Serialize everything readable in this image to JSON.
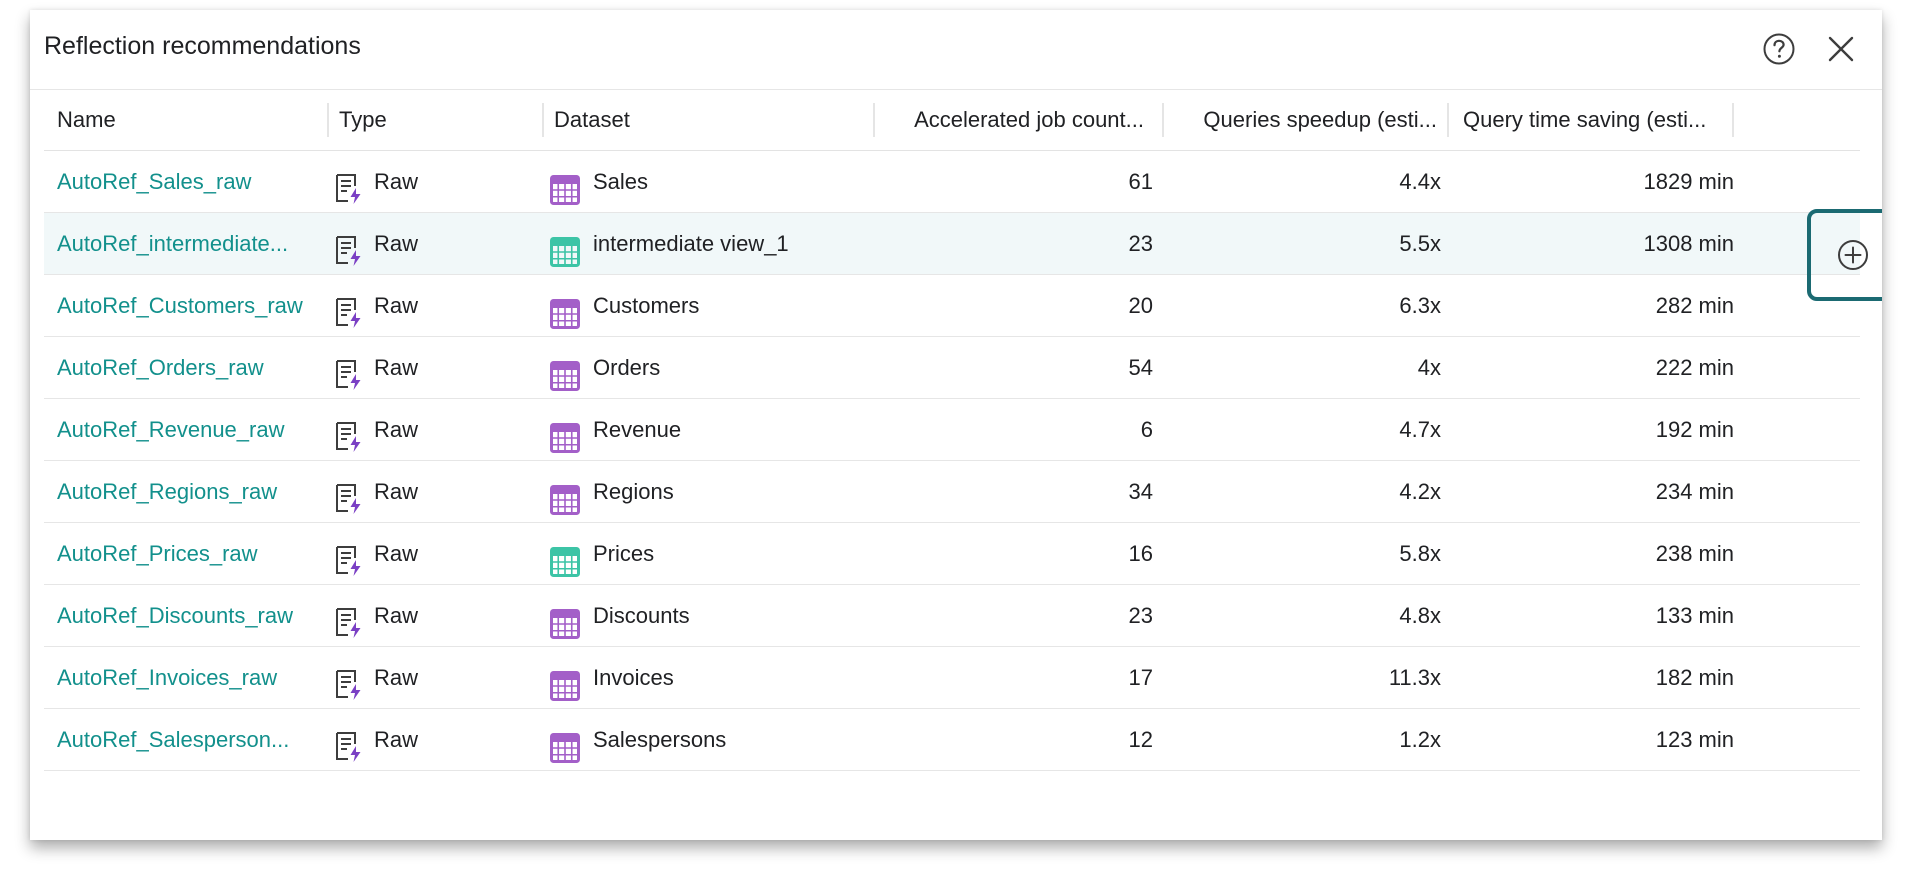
{
  "dialog": {
    "title": "Reflection recommendations",
    "help_icon": "help-circle-icon",
    "close_icon": "close-icon"
  },
  "table": {
    "columns": [
      "Name",
      "Type",
      "Dataset",
      "Accelerated job count...",
      "Queries speedup (esti...",
      "Query time saving (esti..."
    ],
    "rows": [
      {
        "name": "AutoRef_Sales_raw",
        "type": "Raw",
        "dataset": "Sales",
        "dataset_icon": "purple",
        "jobs": "61",
        "speedup": "4.4x",
        "saving": "1829 min"
      },
      {
        "name": "AutoRef_intermediate...",
        "type": "Raw",
        "dataset": "intermediate view_1",
        "dataset_icon": "green",
        "jobs": "23",
        "speedup": "5.5x",
        "saving": "1308 min"
      },
      {
        "name": "AutoRef_Customers_raw",
        "type": "Raw",
        "dataset": "Customers",
        "dataset_icon": "purple",
        "jobs": "20",
        "speedup": "6.3x",
        "saving": "282 min"
      },
      {
        "name": "AutoRef_Orders_raw",
        "type": "Raw",
        "dataset": "Orders",
        "dataset_icon": "purple",
        "jobs": "54",
        "speedup": "4x",
        "saving": "222 min"
      },
      {
        "name": "AutoRef_Revenue_raw",
        "type": "Raw",
        "dataset": "Revenue",
        "dataset_icon": "purple",
        "jobs": "6",
        "speedup": "4.7x",
        "saving": "192 min"
      },
      {
        "name": "AutoRef_Regions_raw",
        "type": "Raw",
        "dataset": "Regions",
        "dataset_icon": "purple",
        "jobs": "34",
        "speedup": "4.2x",
        "saving": "234 min"
      },
      {
        "name": "AutoRef_Prices_raw",
        "type": "Raw",
        "dataset": "Prices",
        "dataset_icon": "green",
        "jobs": "16",
        "speedup": "5.8x",
        "saving": "238 min"
      },
      {
        "name": "AutoRef_Discounts_raw",
        "type": "Raw",
        "dataset": "Discounts",
        "dataset_icon": "purple",
        "jobs": "23",
        "speedup": "4.8x",
        "saving": "133 min"
      },
      {
        "name": "AutoRef_Invoices_raw",
        "type": "Raw",
        "dataset": "Invoices",
        "dataset_icon": "purple",
        "jobs": "17",
        "speedup": "11.3x",
        "saving": "182 min"
      },
      {
        "name": "AutoRef_Salesperson...",
        "type": "Raw",
        "dataset": "Salespersons",
        "dataset_icon": "purple",
        "jobs": "12",
        "speedup": "1.2x",
        "saving": "123 min"
      }
    ],
    "highlighted_row": 1,
    "row_action_icon": "plus-circle-icon"
  },
  "colors": {
    "name_link": "#12908c",
    "dataset_purple": "#a35fc8",
    "dataset_green": "#3cc4a6",
    "highlight_row": "#f1f8f9",
    "focus_border": "#1b6a72"
  }
}
